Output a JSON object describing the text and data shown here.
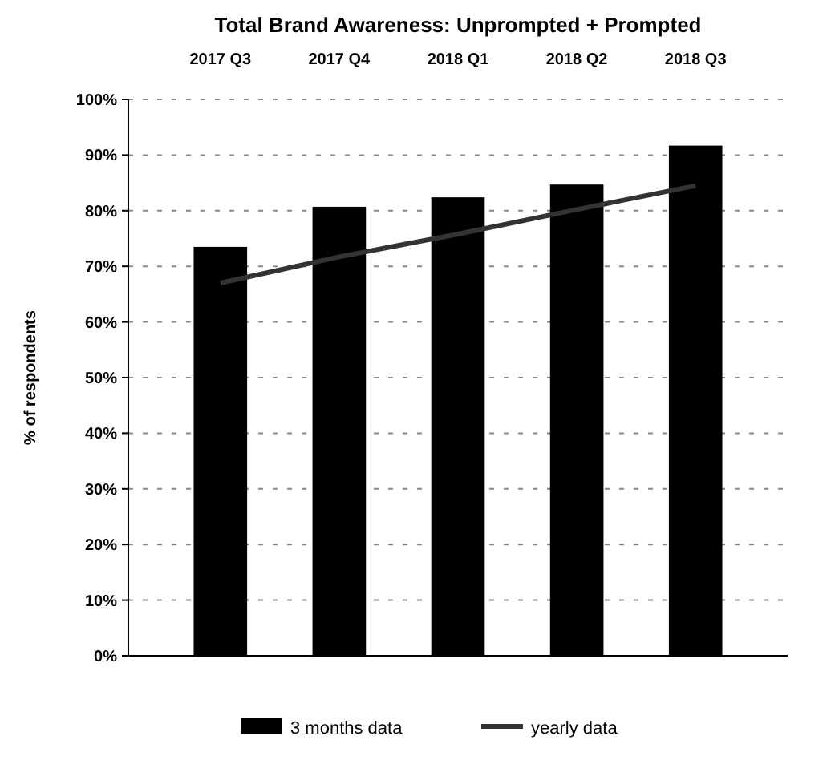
{
  "chart_data": {
    "type": "bar",
    "title": "Total Brand Awareness: Unprompted + Prompted",
    "ylabel": "% of respondents",
    "categories": [
      "2017 Q3",
      "2017 Q4",
      "2018 Q1",
      "2018 Q2",
      "2018 Q3"
    ],
    "series": [
      {
        "name": "3 months data",
        "color": "#000000",
        "values": [
          73.5,
          80.7,
          82.4,
          84.7,
          91.7
        ]
      },
      {
        "name": "yearly data",
        "type": "line",
        "color": "#333333",
        "values": [
          67,
          71.7,
          75.8,
          80.2,
          84.5
        ]
      }
    ],
    "ylim": [
      0,
      100
    ],
    "yticks": [
      {
        "value": 0,
        "label": "0%"
      },
      {
        "value": 10,
        "label": "10%"
      },
      {
        "value": 20,
        "label": "20%"
      },
      {
        "value": 30,
        "label": "30%"
      },
      {
        "value": 40,
        "label": "40%"
      },
      {
        "value": 50,
        "label": "50%"
      },
      {
        "value": 60,
        "label": "60%"
      },
      {
        "value": 70,
        "label": "70%"
      },
      {
        "value": 80,
        "label": "80%"
      },
      {
        "value": 90,
        "label": "90%"
      },
      {
        "value": 100,
        "label": "100%"
      }
    ],
    "grid": "y",
    "legend": "bottom"
  }
}
